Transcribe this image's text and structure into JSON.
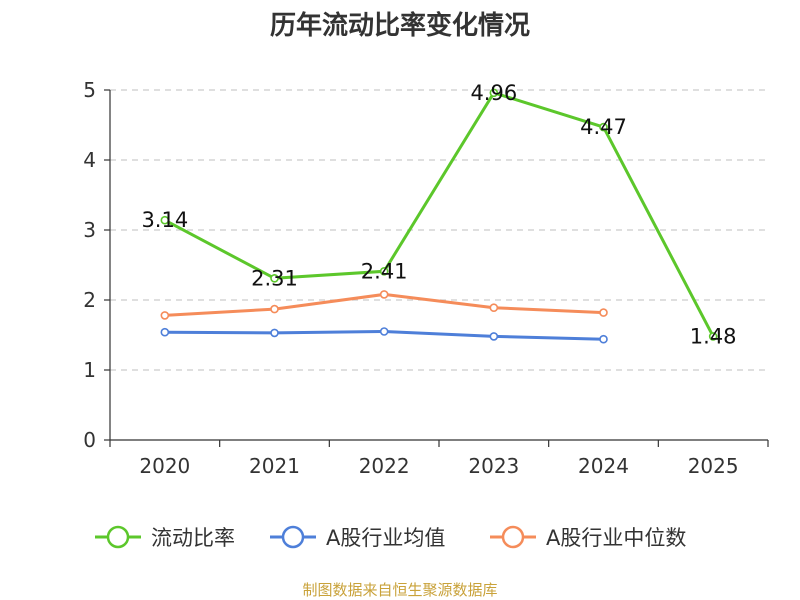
{
  "chart_data": {
    "type": "line",
    "title": "历年流动比率变化情况",
    "categories": [
      "2020",
      "2021",
      "2022",
      "2023",
      "2024",
      "2025"
    ],
    "ylim": [
      0,
      5
    ],
    "yticks": [
      "0",
      "1",
      "2",
      "3",
      "4",
      "5"
    ],
    "grid": true,
    "legend_position": "bottom",
    "series": [
      {
        "name": "流动比率",
        "color": "#5cc72b",
        "values": [
          3.14,
          2.31,
          2.41,
          4.96,
          4.47,
          1.48
        ],
        "labels": [
          "3.14",
          "2.31",
          "2.41",
          "4.96",
          "4.47",
          "1.48"
        ],
        "show_labels": true
      },
      {
        "name": "A股行业均值",
        "color": "#4e7fd9",
        "values": [
          1.54,
          1.53,
          1.55,
          1.48,
          1.44,
          null
        ],
        "show_labels": false
      },
      {
        "name": "A股行业中位数",
        "color": "#f58c5a",
        "values": [
          1.78,
          1.87,
          2.08,
          1.89,
          1.82,
          null
        ],
        "show_labels": false
      }
    ],
    "source": "制图数据来自恒生聚源数据库"
  }
}
